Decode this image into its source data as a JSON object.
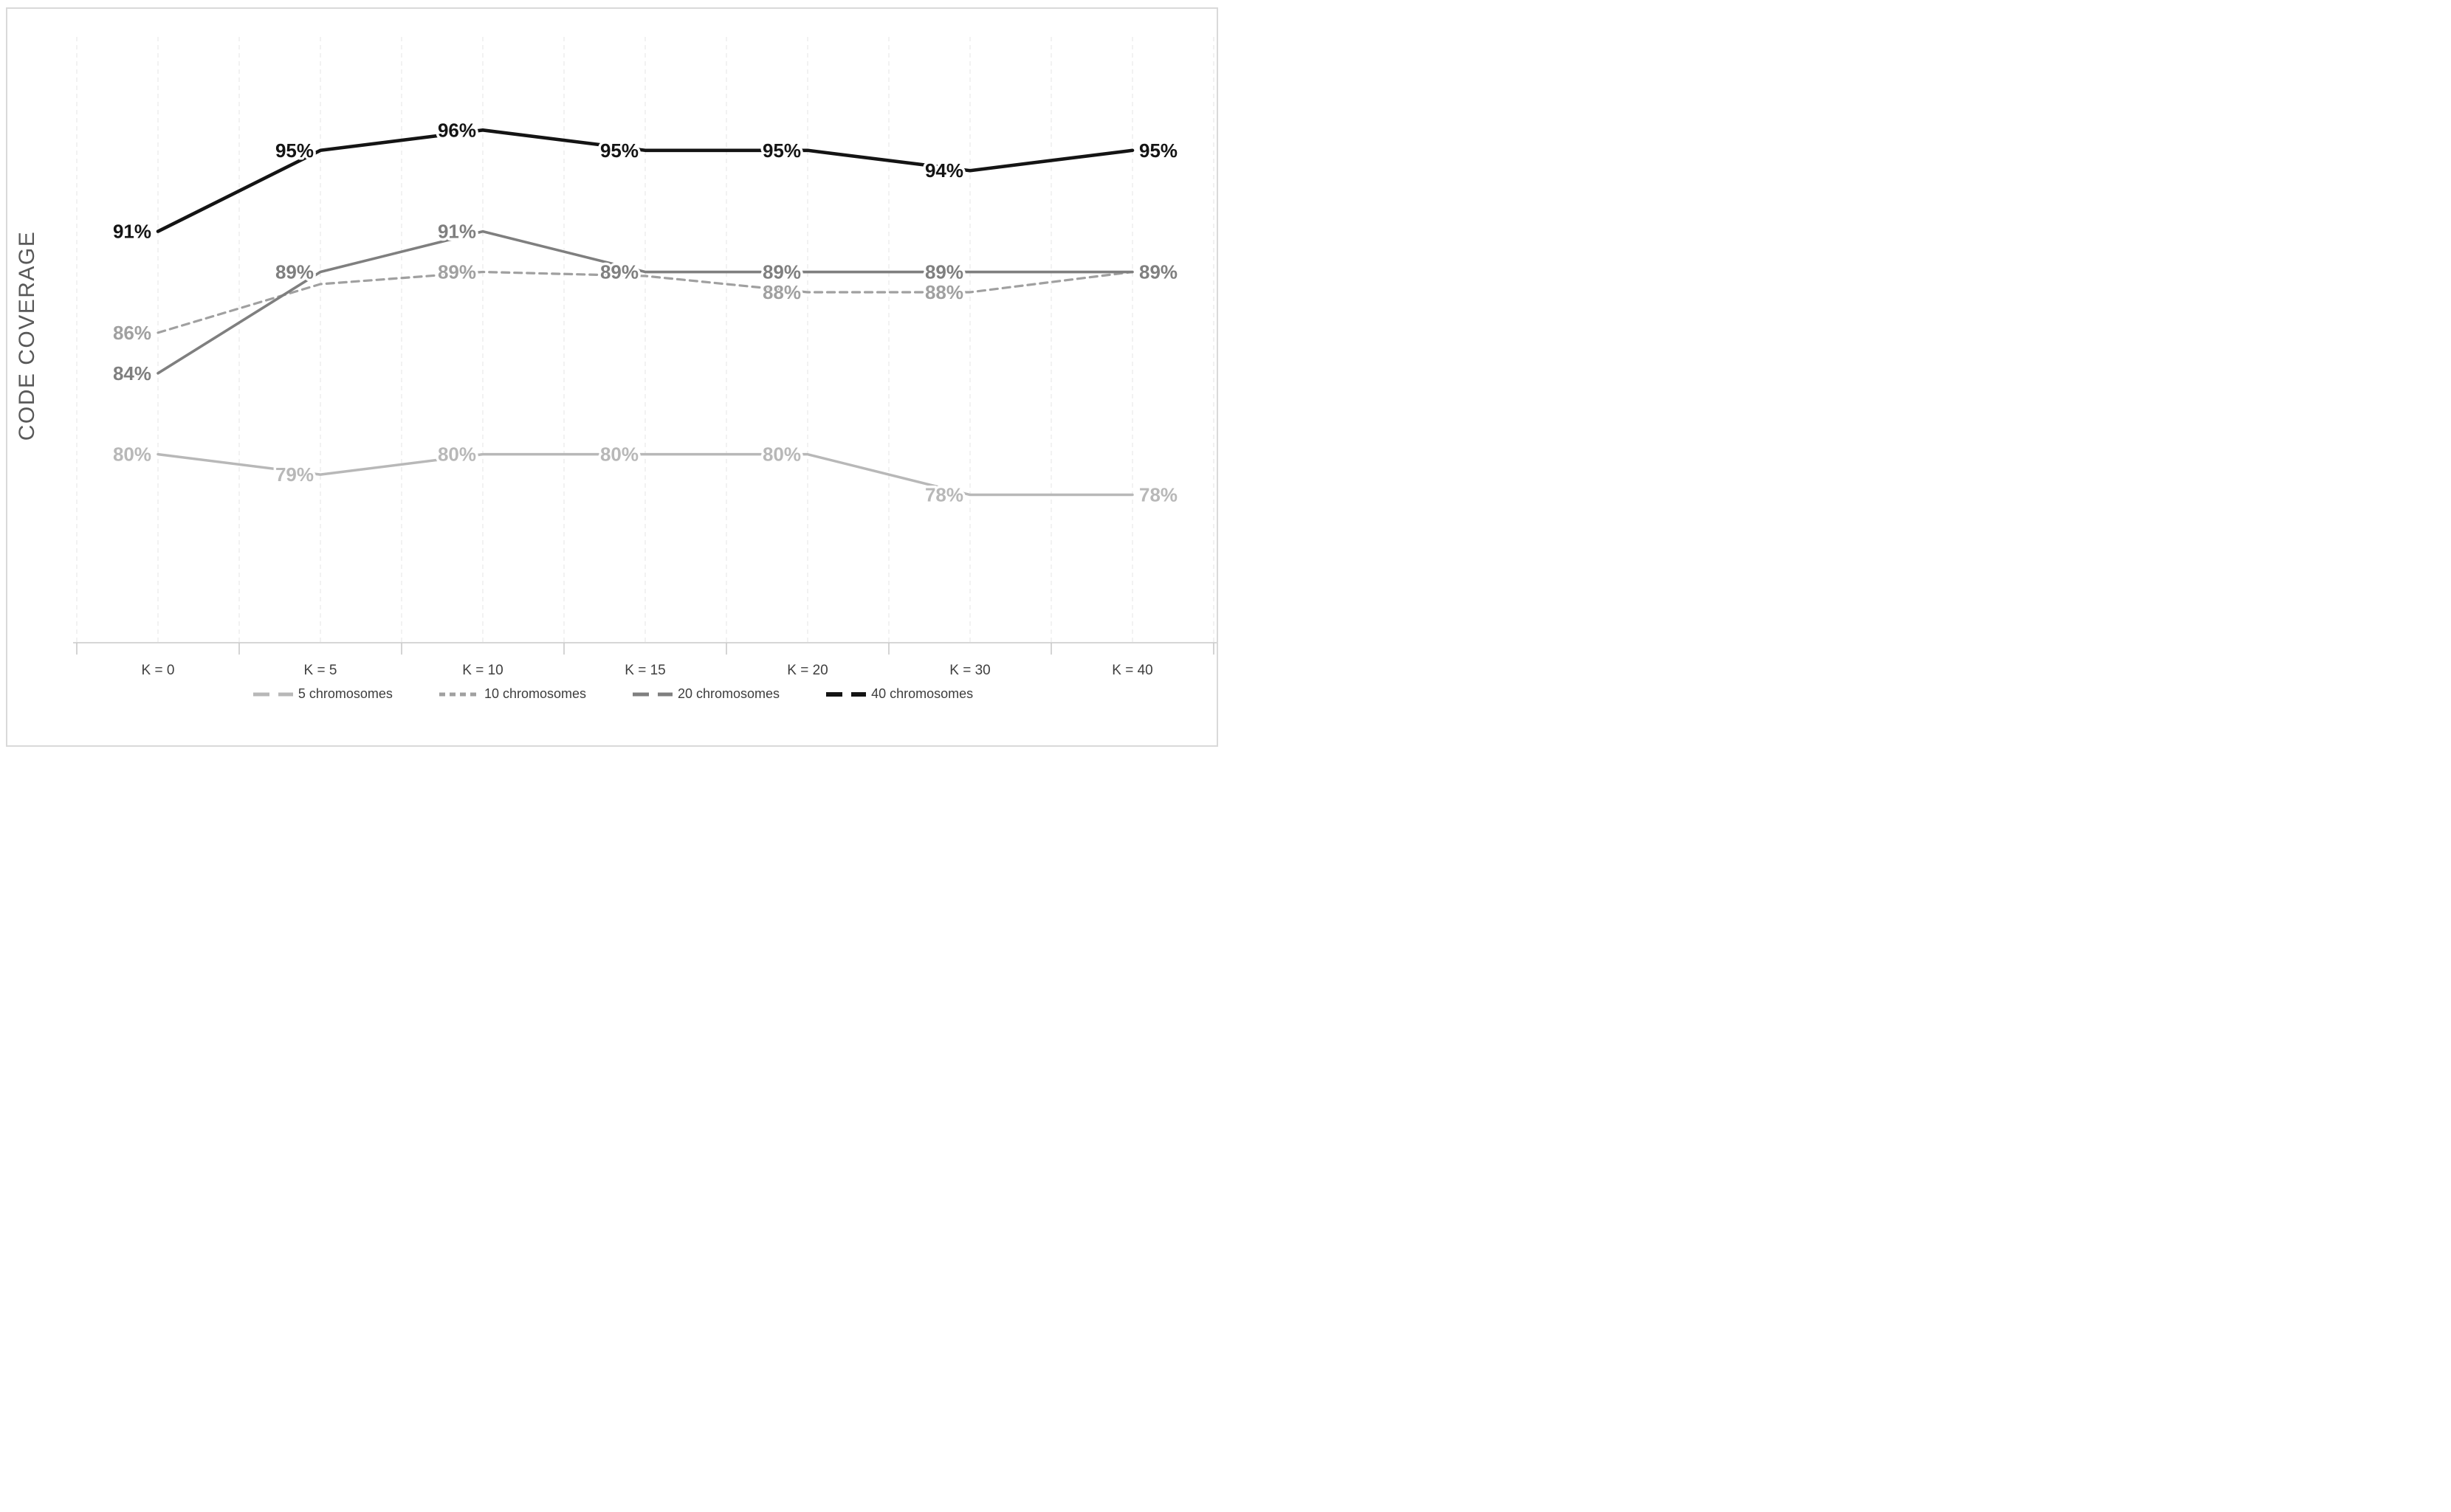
{
  "chart_data": {
    "type": "line",
    "title": "",
    "xlabel": "",
    "ylabel": "CODE COVERAGE",
    "categories": [
      "K = 0",
      "K = 5",
      "K = 10",
      "K = 15",
      "K = 20",
      "K = 30",
      "K = 40"
    ],
    "ylim": [
      70.7,
      100.6
    ],
    "grid": "vertical-dashed",
    "legend_position": "bottom",
    "colors": {
      "series_5": "#b8b8b8",
      "series_10": "#a0a0a0",
      "series_20": "#7f7f7f",
      "series_40": "#141414",
      "gridline": "#e9e9e9",
      "axis": "#c9c9c9",
      "axis_text": "#3f3f3f",
      "y_title_text": "#595959",
      "figure_border": "#d9d9d9"
    },
    "series": [
      {
        "name": "5 chromosomes",
        "color": "#b8b8b8",
        "style": "solid",
        "values": [
          80,
          79,
          80,
          80,
          80,
          78,
          78
        ],
        "labels": [
          "80%",
          "79%",
          "80%",
          "80%",
          "80%",
          "78%",
          "78%"
        ]
      },
      {
        "name": "10 chromosomes",
        "color": "#a0a0a0",
        "style": "dashed",
        "values": [
          86,
          88.4,
          89,
          88.8,
          88,
          88,
          89
        ],
        "labels": [
          "86%",
          null,
          "89%",
          null,
          "88%",
          "88%",
          null
        ]
      },
      {
        "name": "20 chromosomes",
        "color": "#7f7f7f",
        "style": "solid",
        "values": [
          84,
          89,
          91,
          89,
          89,
          89,
          89
        ],
        "labels": [
          "84%",
          "89%",
          "91%",
          "89%",
          "89%",
          "89%",
          "89%"
        ]
      },
      {
        "name": "40 chromosomes",
        "color": "#141414",
        "style": "solid",
        "values": [
          91,
          95,
          96,
          95,
          95,
          94,
          95
        ],
        "labels": [
          "91%",
          "95%",
          "96%",
          "95%",
          "95%",
          "94%",
          "95%"
        ]
      }
    ]
  }
}
